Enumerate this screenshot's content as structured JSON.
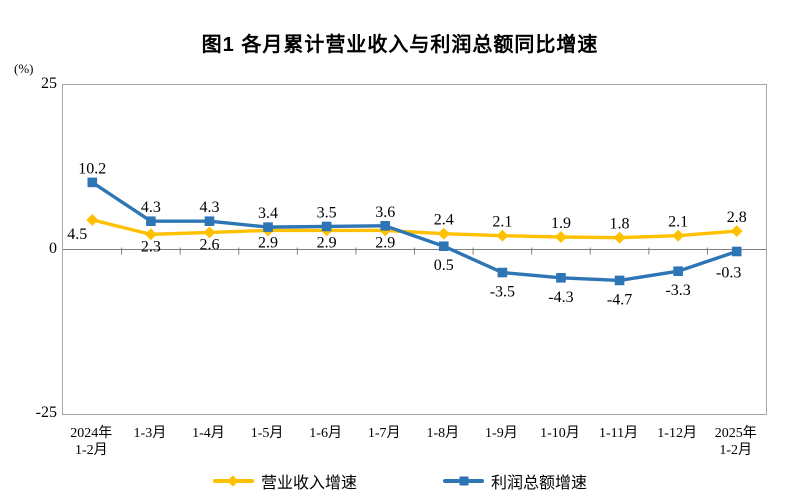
{
  "title": "图1  各月累计营业收入与利润总额同比增速",
  "y_axis": {
    "unit": "(%)",
    "tick_labels": [
      "25",
      "0",
      "-25"
    ]
  },
  "colors": {
    "revenue": "#FFC000",
    "profit": "#2E75B6",
    "axis_border": "#a6a6a6",
    "zero_line": "#808080"
  },
  "chart_data": {
    "type": "line",
    "title": "图1  各月累计营业收入与利润总额同比增速",
    "ylabel": "(%)",
    "ylim": [
      -25,
      25
    ],
    "y_ticks": [
      25,
      0,
      -25
    ],
    "grid": false,
    "legend_position": "bottom",
    "categories": [
      [
        "2024年",
        "1-2月"
      ],
      [
        "1-3月"
      ],
      [
        "1-4月"
      ],
      [
        "1-5月"
      ],
      [
        "1-6月"
      ],
      [
        "1-7月"
      ],
      [
        "1-8月"
      ],
      [
        "1-9月"
      ],
      [
        "1-10月"
      ],
      [
        "1-11月"
      ],
      [
        "1-12月"
      ],
      [
        "2025年",
        "1-2月"
      ]
    ],
    "series": [
      {
        "name": "营业收入增速",
        "color": "#FFC000",
        "marker": "diamond",
        "values": [
          4.5,
          2.3,
          2.6,
          2.9,
          2.9,
          2.9,
          2.4,
          2.1,
          1.9,
          1.8,
          2.1,
          2.8
        ],
        "label_side": [
          "below",
          "below",
          "below",
          "below",
          "below",
          "below",
          "above",
          "above",
          "above",
          "above",
          "above",
          "above"
        ]
      },
      {
        "name": "利润总额增速",
        "color": "#2E75B6",
        "marker": "square",
        "values": [
          10.2,
          4.3,
          4.3,
          3.4,
          3.5,
          3.6,
          0.5,
          -3.5,
          -4.3,
          -4.7,
          -3.3,
          -0.3
        ],
        "label_side": [
          "above",
          "above",
          "above",
          "above",
          "above",
          "above",
          "below",
          "below",
          "below",
          "below",
          "below",
          "below"
        ]
      }
    ]
  }
}
